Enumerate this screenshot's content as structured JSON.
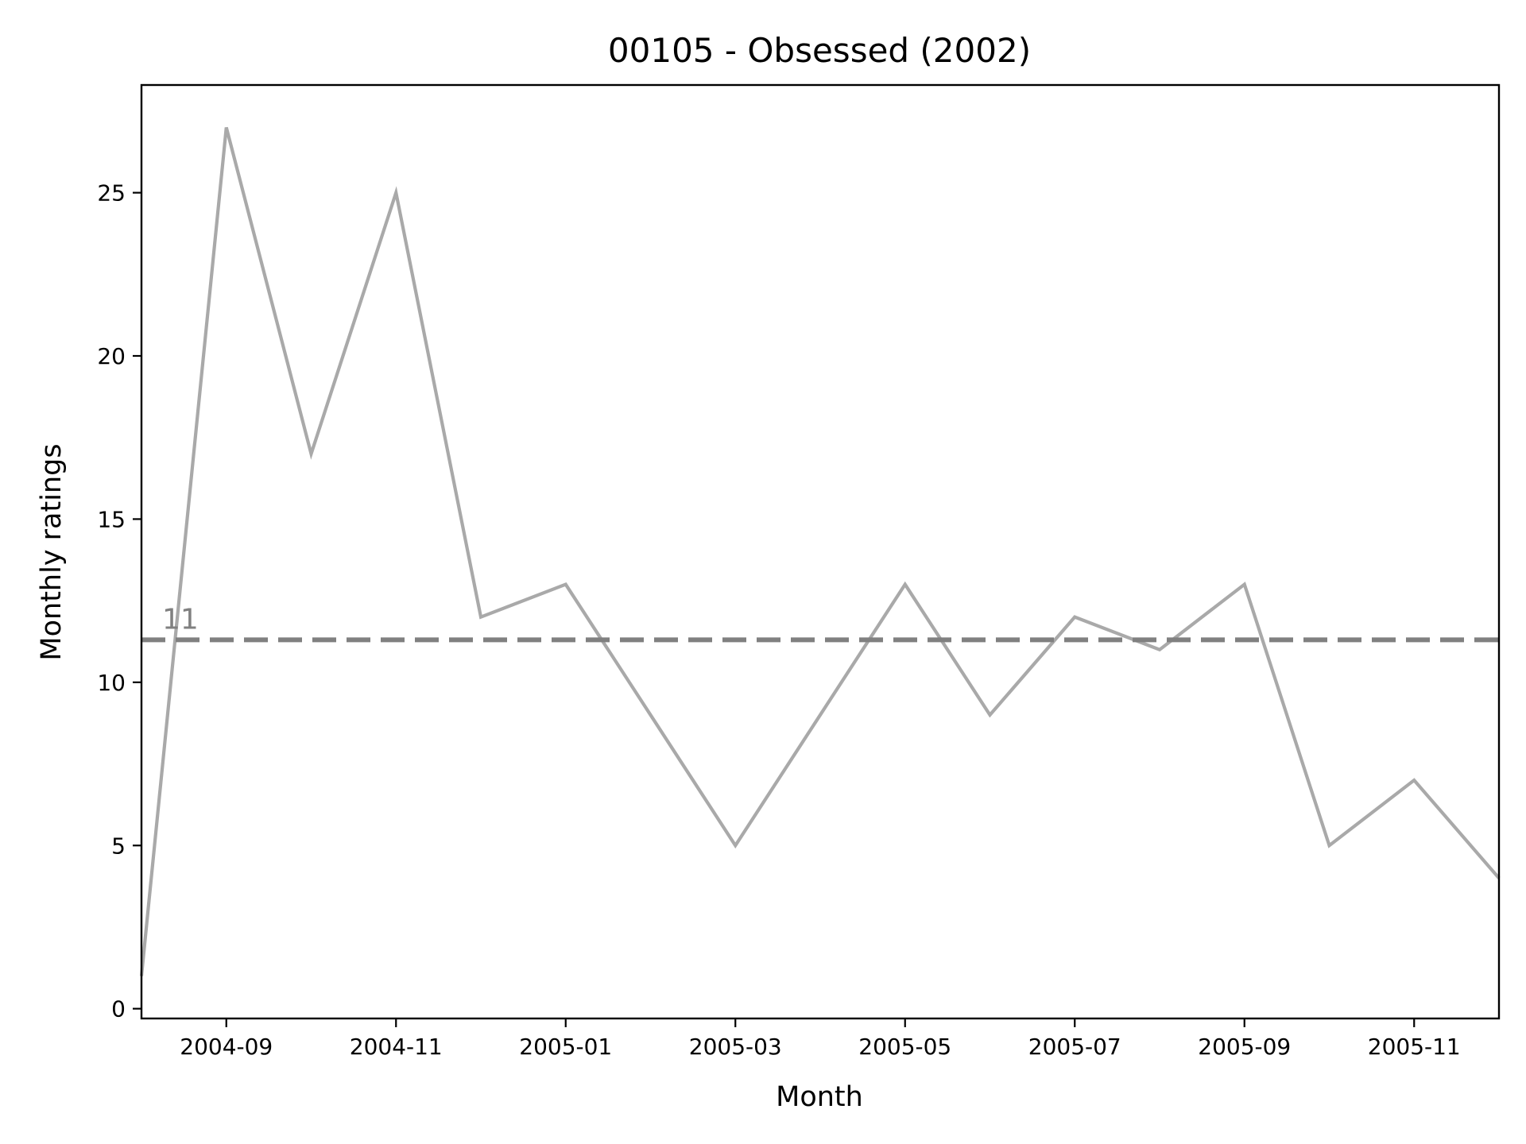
{
  "chart_data": {
    "type": "line",
    "title": "00105 - Obsessed (2002)",
    "xlabel": "Month",
    "ylabel": "Monthly ratings",
    "x": [
      "2004-08",
      "2004-09",
      "2004-10",
      "2004-11",
      "2004-12",
      "2005-01",
      "2005-02",
      "2005-03",
      "2005-04",
      "2005-05",
      "2005-06",
      "2005-07",
      "2005-08",
      "2005-09",
      "2005-10",
      "2005-11",
      "2005-12"
    ],
    "series": [
      {
        "values": [
          1,
          27,
          17,
          25,
          12,
          13,
          9,
          5,
          9,
          13,
          9,
          12,
          11,
          13,
          5,
          7,
          4
        ]
      }
    ],
    "x_ticks": [
      "2004-09",
      "2004-11",
      "2005-01",
      "2005-03",
      "2005-05",
      "2005-07",
      "2005-09",
      "2005-11"
    ],
    "y_ticks": [
      0,
      5,
      10,
      15,
      20,
      25
    ],
    "ylim": [
      -0.3,
      28.3
    ],
    "xlim": [
      "2004-08",
      "2005-12"
    ],
    "reference_line": {
      "value": 11.3,
      "label": "11",
      "style": "dashed"
    },
    "grid": false,
    "colors": {
      "series": "#a9a9a9",
      "reference": "#808080",
      "axes": "#000000"
    }
  }
}
